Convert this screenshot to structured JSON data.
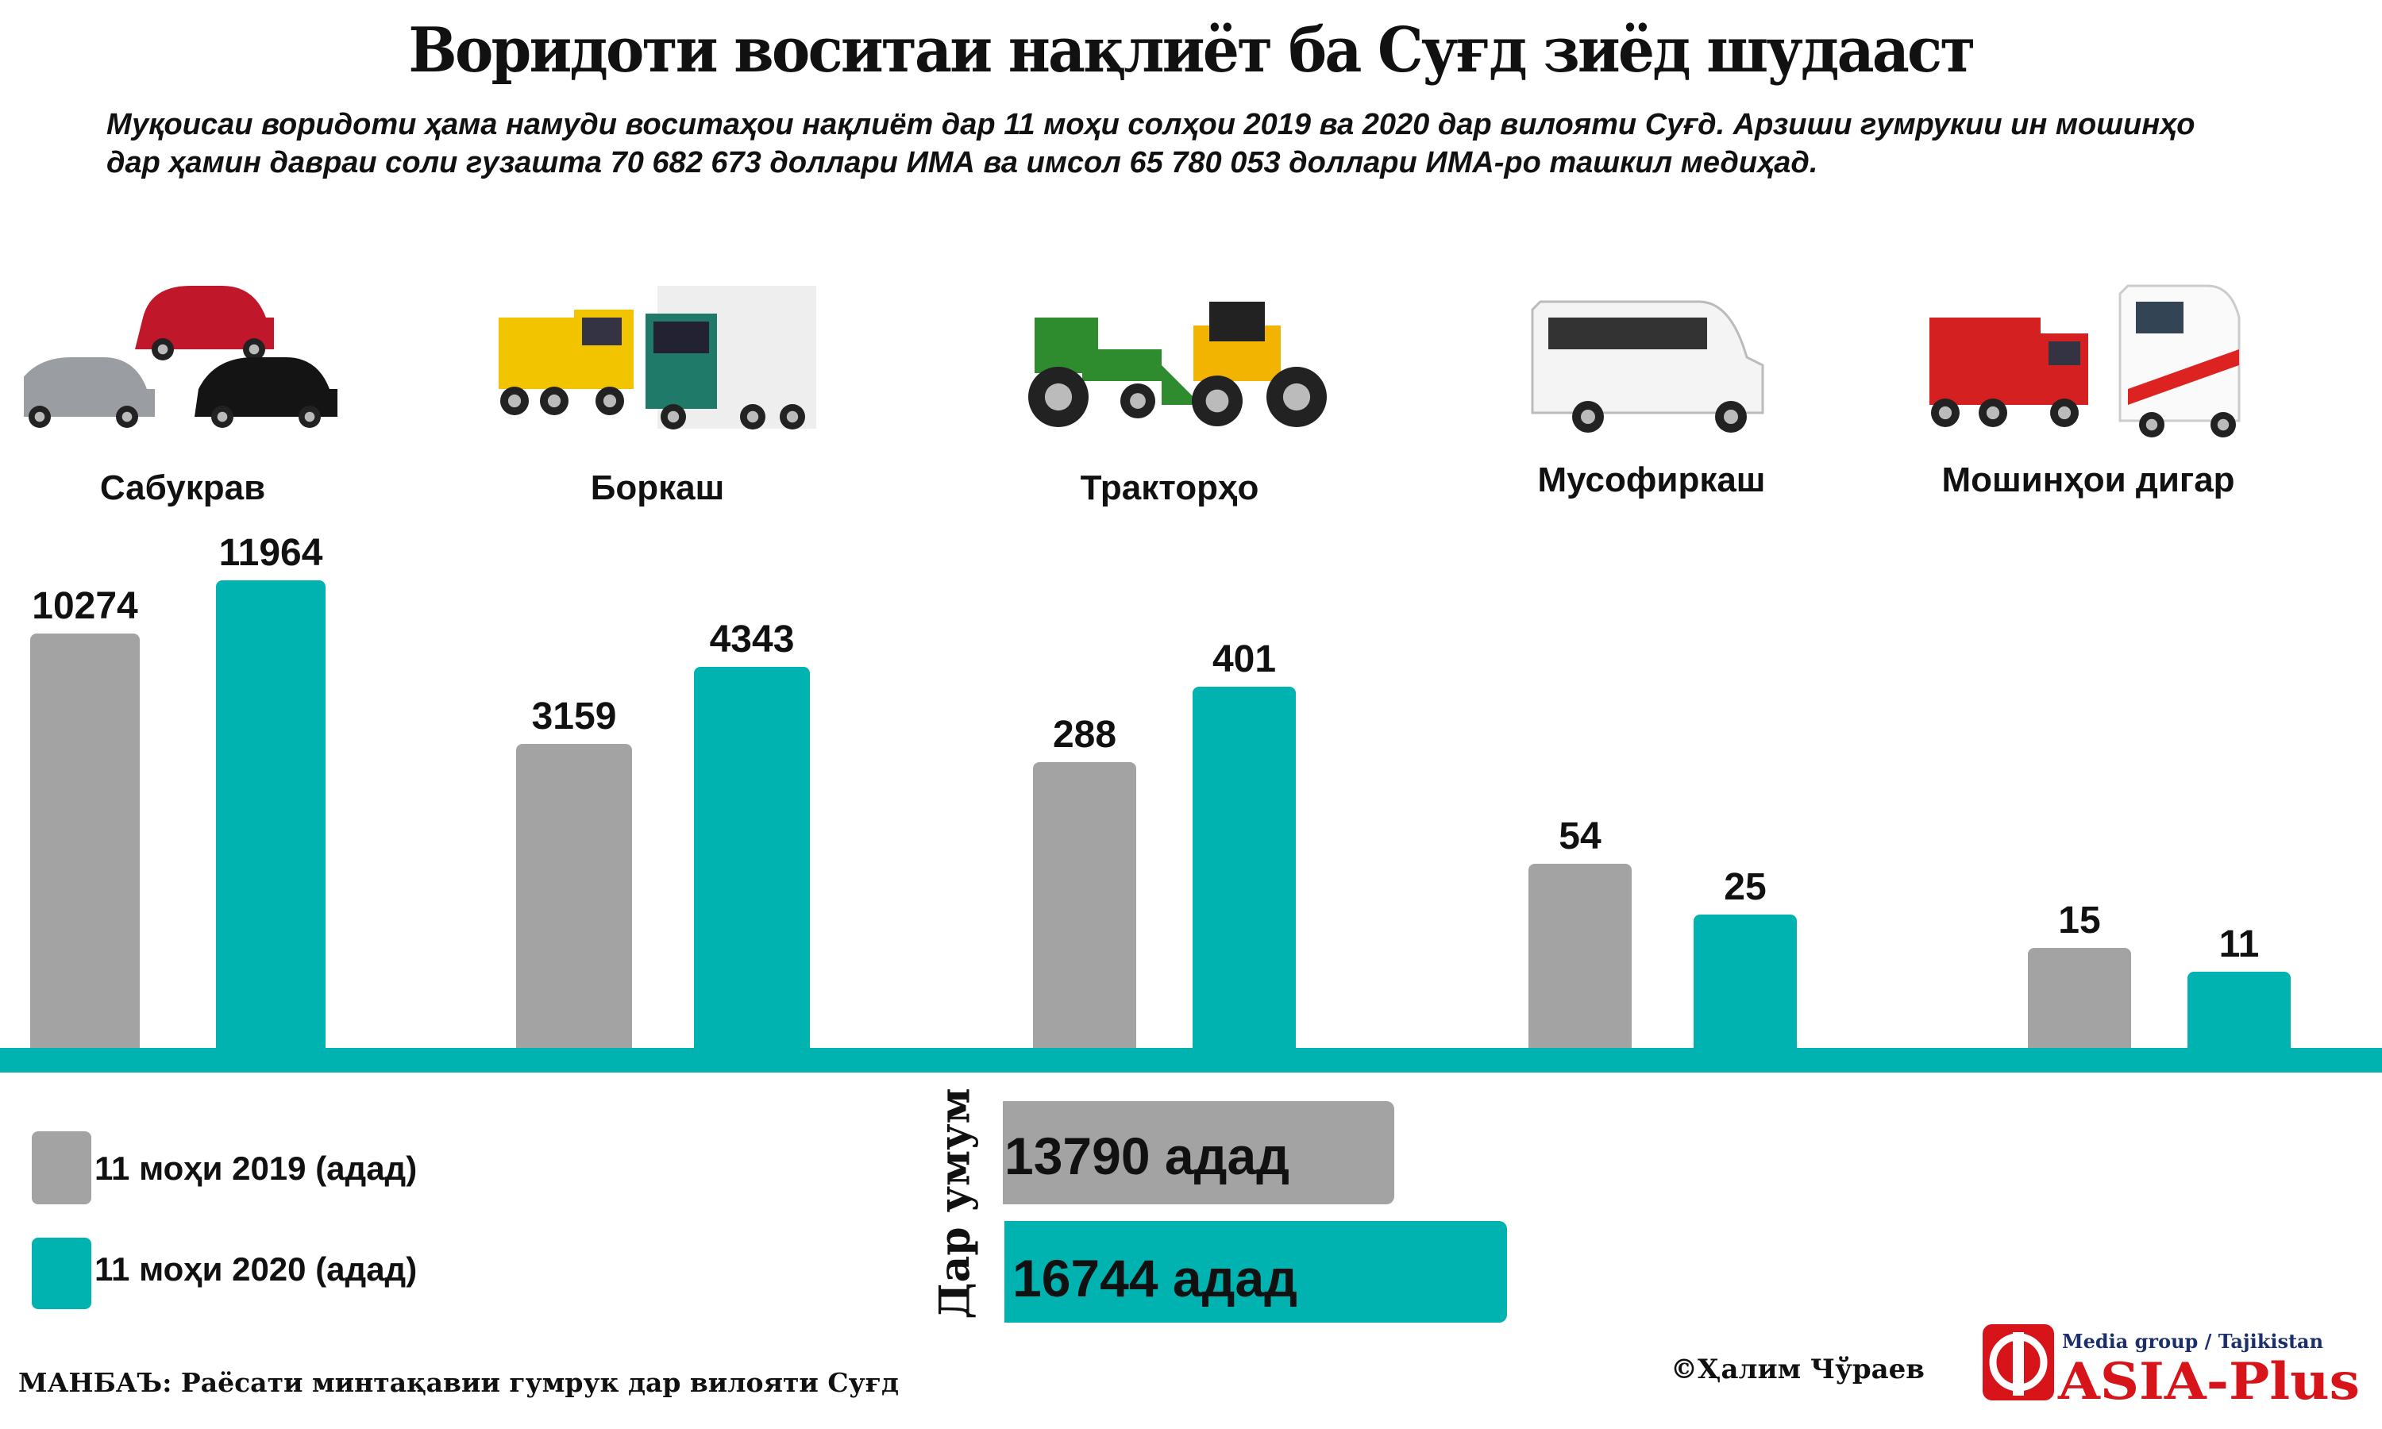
{
  "header": {
    "title": "Воридоти воситаи  нақлиёт ба Суғд зиёд шудааст",
    "subtitle_line1": "Муқоисаи воридоти ҳама намуди  воситаҳои нақлиёт дар 11 моҳи солҳои 2019 ва 2020 дар вилояти Суғд. Арзиши гумрукии ин мошинҳо",
    "subtitle_line2": "дар ҳамин давраи соли гузашта 70 682 673 доллари ИМА ва имсол 65 780 053 доллари ИМА-ро ташкил медиҳад."
  },
  "colors": {
    "y2019": "#a3a3a3",
    "y2020": "#00b2b0",
    "logo_red": "#d7141a",
    "logo_blue": "#1c2f6b"
  },
  "chart_data": {
    "type": "bar",
    "title": "Воридоти воситаи  нақлиёт ба Суғд зиёд шудааст",
    "categories": [
      "Сабукрав",
      "Боркаш",
      "Тракторҳо",
      "Мусофиркаш",
      "Мошинҳои дигар"
    ],
    "category_icons": [
      "cars-icon",
      "trucks-icon",
      "tractors-icon",
      "minibus-icon",
      "fire-truck-ambulance-icon"
    ],
    "series": [
      {
        "name": "11 моҳи 2019 (адад)",
        "values": [
          10274,
          3159,
          288,
          54,
          15
        ]
      },
      {
        "name": "11 моҳи 2020 (адад)",
        "values": [
          11964,
          4343,
          401,
          25,
          11
        ]
      }
    ],
    "legend_position": "bottom-left",
    "totals": {
      "label": "Дар умум",
      "items": [
        {
          "series": "11 моҳи 2019 (адад)",
          "value": 13790,
          "text": "13790 адад"
        },
        {
          "series": "11 моҳи 2020 (адад)",
          "value": 16744,
          "text": "16744 адад"
        }
      ]
    }
  },
  "footer": {
    "source": "МАНБАЪ: Раёсати минтақавии гумрук дар вилояти Суғд",
    "author": "©Ҳалим Чўраев",
    "logo_text": "ASIA-Plus",
    "logo_tagline": "Media group / Tajikistan"
  }
}
